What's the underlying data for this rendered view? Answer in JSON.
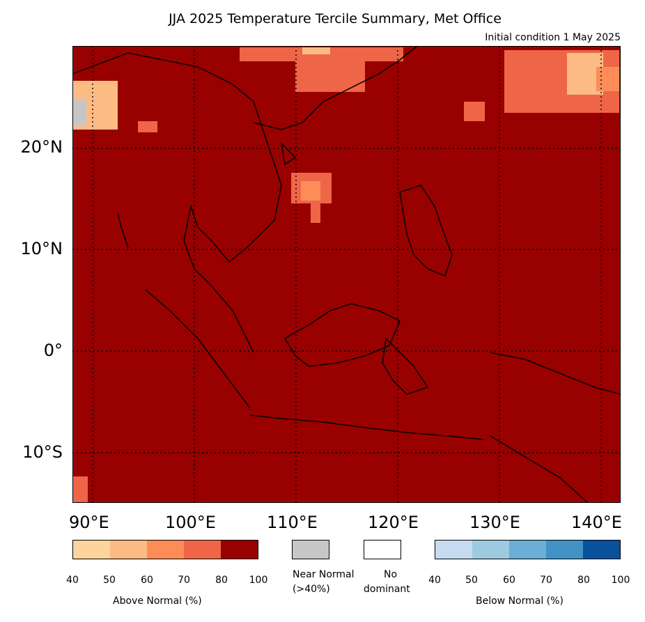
{
  "title": "JJA 2025 Temperature Tercile Summary, Met Office",
  "subtitle": "Initial condition 1 May 2025",
  "map": {
    "background_color": "#990000",
    "lat_labels": [
      "20°N",
      "10°N",
      "0°",
      "10°S"
    ],
    "lon_labels": [
      "90°E",
      "100°E",
      "110°E",
      "120°E",
      "130°E",
      "140°E"
    ]
  },
  "legend": {
    "above_normal": {
      "label": "Above Normal (%)",
      "colors": [
        "#fdd49e",
        "#fdbb84",
        "#fc8d59",
        "#ef6548",
        "#990000"
      ],
      "ticks": [
        "40",
        "50",
        "60",
        "70",
        "80",
        "100"
      ]
    },
    "near_normal": {
      "label_line1": "Near Normal",
      "label_line2": "(>40%)",
      "color": "#c6c6c6"
    },
    "no_dominant": {
      "label_line1": "No",
      "label_line2": "dominant",
      "color": "#ffffff"
    },
    "below_normal": {
      "label": "Below Normal (%)",
      "colors": [
        "#c6dbef",
        "#9ecae1",
        "#6baed6",
        "#4292c6",
        "#08519c"
      ],
      "ticks": [
        "40",
        "50",
        "60",
        "70",
        "80",
        "100"
      ]
    }
  }
}
